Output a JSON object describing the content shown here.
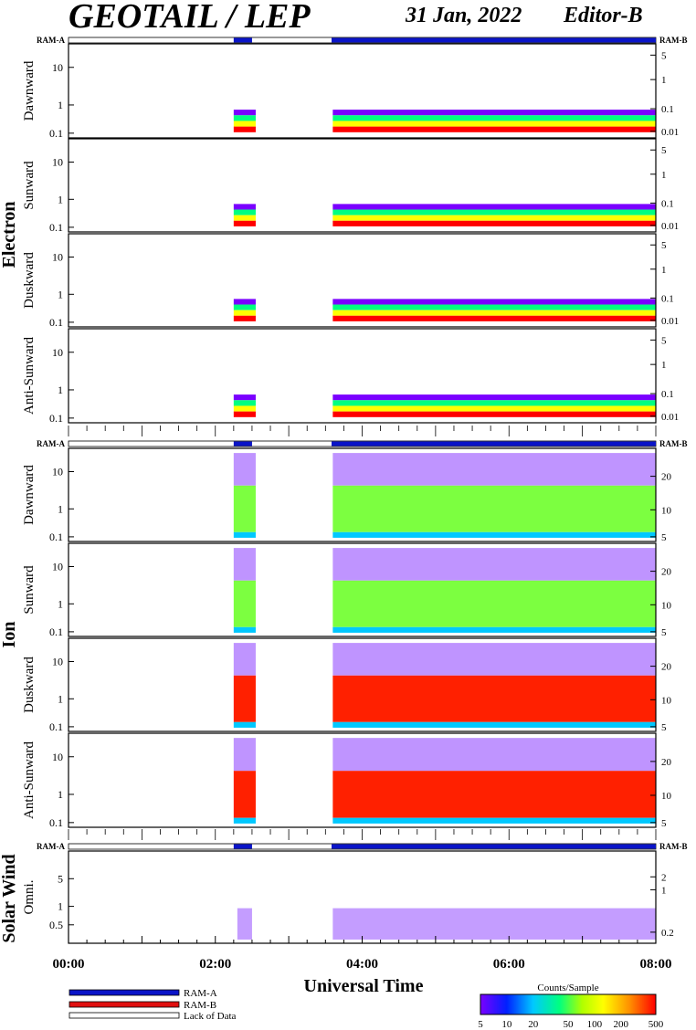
{
  "header": {
    "title": "GEOTAIL / LEP",
    "date": "31 Jan, 2022",
    "editor": "Editor-B"
  },
  "chart_data": {
    "type": "heatmap",
    "x_axis": {
      "label": "Universal Time",
      "range": [
        "00:00",
        "08:00"
      ],
      "major_ticks": [
        "00:00",
        "02:00",
        "04:00",
        "06:00",
        "08:00"
      ],
      "minor_tick_interval_minutes": 15
    },
    "status_bar": {
      "left_label": "RAM-A",
      "right_label": "RAM-B",
      "segments": [
        {
          "from": "00:00",
          "to": "02:15",
          "mode": "Lack of Data"
        },
        {
          "from": "02:15",
          "to": "02:30",
          "mode": "RAM-A"
        },
        {
          "from": "02:30",
          "to": "03:35",
          "mode": "Lack of Data"
        },
        {
          "from": "03:35",
          "to": "08:00",
          "mode": "RAM-A"
        }
      ]
    },
    "groups": [
      {
        "name": "Electron",
        "panels": [
          {
            "name": "Dawnward",
            "left_ticks": [
              "10",
              "1",
              "0.1"
            ],
            "right_ticks": [
              "5",
              "1",
              "0.1",
              "0.01"
            ]
          },
          {
            "name": "Sunward",
            "left_ticks": [
              "10",
              "1",
              "0.1"
            ],
            "right_ticks": [
              "5",
              "1",
              "0.1",
              "0.01"
            ]
          },
          {
            "name": "Duskward",
            "left_ticks": [
              "10",
              "1",
              "0.1"
            ],
            "right_ticks": [
              "5",
              "1",
              "0.1",
              "0.01"
            ]
          },
          {
            "name": "Anti-Sunward",
            "left_ticks": [
              "10",
              "1",
              "0.1"
            ],
            "right_ticks": [
              "5",
              "1",
              "0.1",
              "0.01"
            ]
          }
        ]
      },
      {
        "name": "Ion",
        "panels": [
          {
            "name": "Dawnward",
            "left_ticks": [
              "10",
              "1",
              "0.1"
            ],
            "right_ticks": [
              "20",
              "10",
              "5"
            ]
          },
          {
            "name": "Sunward",
            "left_ticks": [
              "10",
              "1",
              "0.1"
            ],
            "right_ticks": [
              "20",
              "10",
              "5"
            ]
          },
          {
            "name": "Duskward",
            "left_ticks": [
              "10",
              "1",
              "0.1"
            ],
            "right_ticks": [
              "20",
              "10",
              "5"
            ]
          },
          {
            "name": "Anti-Sunward",
            "left_ticks": [
              "10",
              "1",
              "0.1"
            ],
            "right_ticks": [
              "20",
              "10",
              "5"
            ]
          }
        ]
      },
      {
        "name": "Solar Wind",
        "panels": [
          {
            "name": "Omni.",
            "left_ticks": [
              "5",
              "1",
              "0.5"
            ],
            "right_ticks": [
              "2",
              "1",
              "0.2"
            ]
          }
        ]
      }
    ],
    "mode_legend": [
      {
        "label": "RAM-A",
        "color": "#0a14c8"
      },
      {
        "label": "RAM-B",
        "color": "#e01010"
      },
      {
        "label": "Lack of Data",
        "color": "#ffffff"
      }
    ],
    "colorbar": {
      "title": "Counts/Sample",
      "ticks": [
        "5",
        "10",
        "20",
        "50",
        "100",
        "200",
        "500"
      ],
      "colors": [
        "#7a00ff",
        "#0020ff",
        "#00c8ff",
        "#00ff80",
        "#b0ff00",
        "#ffff00",
        "#ff9000",
        "#ff0000"
      ]
    }
  }
}
